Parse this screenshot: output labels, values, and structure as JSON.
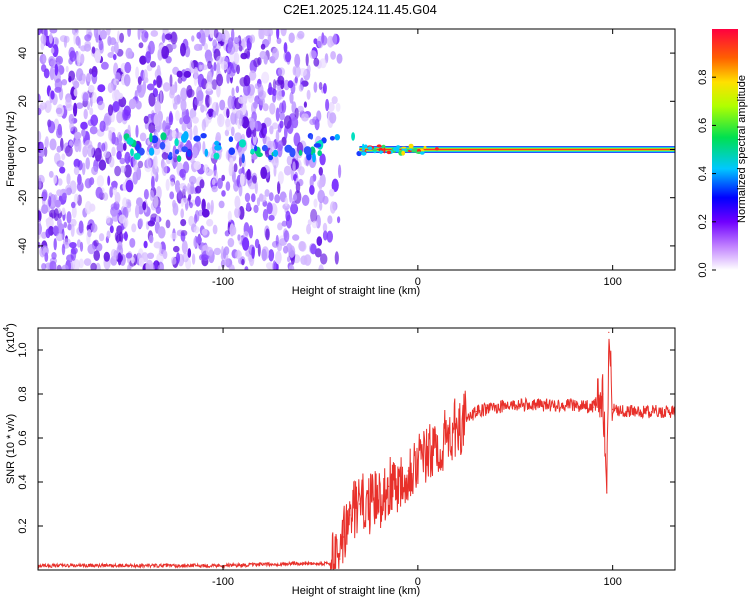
{
  "title": "C2E1.2025.124.11.45.G04",
  "colors": {
    "line": "#e8302a",
    "axis": "#000000",
    "ridge": "#00c060"
  },
  "chart_data": [
    {
      "type": "heatmap",
      "title": "C2E1.2025.124.11.45.G04",
      "xlabel": "Height of straight line (km)",
      "ylabel": "Frequency (Hz)",
      "xlim": [
        -195,
        132
      ],
      "ylim": [
        -50,
        50
      ],
      "xticks": [
        -100,
        0,
        100
      ],
      "yticks": [
        -40,
        -20,
        0,
        20,
        40
      ],
      "xtick_labels": [
        "-100",
        "0",
        "100"
      ],
      "ytick_labels": [
        "-40",
        "-20",
        "0",
        "20",
        "40"
      ],
      "colorbar": {
        "label": "Normalized spectral amplitude",
        "range": [
          0,
          1
        ],
        "ticks": [
          0.0,
          0.2,
          0.4,
          0.6,
          0.8
        ],
        "tick_labels": [
          "0.0",
          "0.2",
          "0.4",
          "0.6",
          "0.8"
        ],
        "colormap": "rainbow"
      },
      "ridge": {
        "x_start": -30,
        "x_end": 132,
        "frequency": 0
      },
      "noise_region": {
        "x_start": -195,
        "x_end": -50
      }
    },
    {
      "type": "line",
      "xlabel": "Height of straight line (km)",
      "ylabel": "SNR (10 * v/v)",
      "y_multiplier": "(x10",
      "y_multiplier_exp": "4",
      "y_multiplier_close": ")",
      "xlim": [
        -195,
        132
      ],
      "ylim": [
        0,
        1.1
      ],
      "xticks": [
        -100,
        0,
        100
      ],
      "yticks": [
        0.2,
        0.4,
        0.6,
        0.8,
        1.0
      ],
      "xtick_labels": [
        "-100",
        "0",
        "100"
      ],
      "ytick_labels": [
        "0.2",
        "0.4",
        "0.6",
        "0.8",
        "1.0"
      ],
      "series": [
        {
          "x": [
            -195,
            -150,
            -100,
            -60,
            -45,
            -40,
            -38,
            -35,
            -30,
            -25,
            -20,
            -15,
            -10,
            -5,
            0,
            5,
            10,
            15,
            20,
            25,
            30,
            40,
            50,
            60,
            70,
            80,
            90,
            95,
            97,
            98,
            100,
            110,
            120,
            132
          ],
          "y": [
            0.02,
            0.02,
            0.02,
            0.03,
            0.03,
            0.05,
            0.15,
            0.25,
            0.3,
            0.3,
            0.32,
            0.38,
            0.4,
            0.45,
            0.5,
            0.52,
            0.55,
            0.6,
            0.65,
            0.68,
            0.72,
            0.74,
            0.75,
            0.75,
            0.75,
            0.75,
            0.74,
            0.8,
            0.35,
            1.08,
            0.73,
            0.72,
            0.72,
            0.72
          ]
        }
      ]
    }
  ]
}
